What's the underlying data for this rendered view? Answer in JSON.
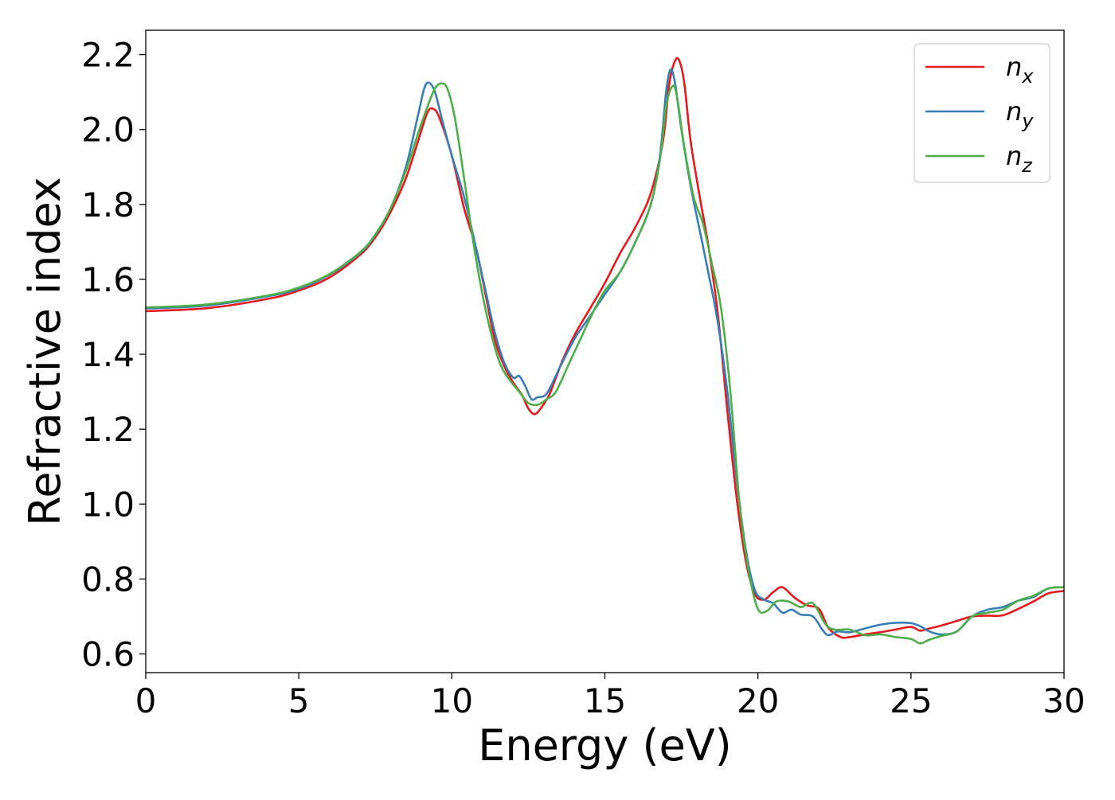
{
  "chart_data": {
    "type": "line",
    "title": "",
    "xlabel": "Energy (eV)",
    "ylabel": "Refractive index",
    "xlim": [
      0,
      30
    ],
    "ylim": [
      0.55,
      2.265
    ],
    "xticks": [
      0,
      5,
      10,
      15,
      20,
      25,
      30
    ],
    "xtick_labels": [
      "0",
      "5",
      "10",
      "15",
      "20",
      "25",
      "30"
    ],
    "yticks": [
      0.6,
      0.8,
      1.0,
      1.2,
      1.4,
      1.6,
      1.8,
      2.0,
      2.2
    ],
    "ytick_labels": [
      "0.6",
      "0.8",
      "1.0",
      "1.2",
      "1.4",
      "1.6",
      "1.8",
      "2.0",
      "2.2"
    ],
    "grid": false,
    "legend_position": "top-right",
    "series": [
      {
        "name": "n",
        "subscript": "x",
        "color": "#e41a1c",
        "points": [
          [
            0,
            1.515
          ],
          [
            2,
            1.523
          ],
          [
            4,
            1.548
          ],
          [
            5,
            1.57
          ],
          [
            6,
            1.605
          ],
          [
            7,
            1.665
          ],
          [
            7.5,
            1.712
          ],
          [
            8,
            1.78
          ],
          [
            8.5,
            1.87
          ],
          [
            8.9,
            1.97
          ],
          [
            9.2,
            2.045
          ],
          [
            9.4,
            2.055
          ],
          [
            9.6,
            2.03
          ],
          [
            10,
            1.93
          ],
          [
            10.4,
            1.79
          ],
          [
            10.8,
            1.68
          ],
          [
            11.1,
            1.56
          ],
          [
            11.4,
            1.44
          ],
          [
            11.7,
            1.37
          ],
          [
            12,
            1.325
          ],
          [
            12.3,
            1.29
          ],
          [
            12.5,
            1.255
          ],
          [
            12.7,
            1.24
          ],
          [
            12.9,
            1.255
          ],
          [
            13.2,
            1.295
          ],
          [
            13.6,
            1.38
          ],
          [
            14,
            1.45
          ],
          [
            14.5,
            1.52
          ],
          [
            15,
            1.59
          ],
          [
            15.5,
            1.67
          ],
          [
            16,
            1.74
          ],
          [
            16.5,
            1.83
          ],
          [
            16.9,
            1.97
          ],
          [
            17.1,
            2.12
          ],
          [
            17.3,
            2.185
          ],
          [
            17.45,
            2.18
          ],
          [
            17.6,
            2.12
          ],
          [
            17.8,
            1.97
          ],
          [
            18.1,
            1.82
          ],
          [
            18.4,
            1.68
          ],
          [
            18.7,
            1.5
          ],
          [
            19,
            1.25
          ],
          [
            19.3,
            1.02
          ],
          [
            19.6,
            0.85
          ],
          [
            19.9,
            0.76
          ],
          [
            20.2,
            0.745
          ],
          [
            20.5,
            0.765
          ],
          [
            20.8,
            0.778
          ],
          [
            21.2,
            0.75
          ],
          [
            21.6,
            0.73
          ],
          [
            22.0,
            0.72
          ],
          [
            22.3,
            0.67
          ],
          [
            22.7,
            0.645
          ],
          [
            23.0,
            0.645
          ],
          [
            23.5,
            0.652
          ],
          [
            24,
            0.658
          ],
          [
            24.5,
            0.665
          ],
          [
            25,
            0.672
          ],
          [
            25.3,
            0.662
          ],
          [
            25.6,
            0.668
          ],
          [
            26,
            0.676
          ],
          [
            26.5,
            0.688
          ],
          [
            27,
            0.7
          ],
          [
            27.5,
            0.702
          ],
          [
            28,
            0.703
          ],
          [
            28.5,
            0.72
          ],
          [
            29,
            0.74
          ],
          [
            29.5,
            0.762
          ],
          [
            30,
            0.768
          ]
        ]
      },
      {
        "name": "n",
        "subscript": "y",
        "color": "#377eb8",
        "points": [
          [
            0,
            1.522
          ],
          [
            2,
            1.53
          ],
          [
            4,
            1.555
          ],
          [
            5,
            1.575
          ],
          [
            6,
            1.612
          ],
          [
            7,
            1.67
          ],
          [
            7.5,
            1.718
          ],
          [
            8,
            1.79
          ],
          [
            8.5,
            1.9
          ],
          [
            8.9,
            2.04
          ],
          [
            9.1,
            2.11
          ],
          [
            9.25,
            2.125
          ],
          [
            9.45,
            2.1
          ],
          [
            9.7,
            2.02
          ],
          [
            10,
            1.93
          ],
          [
            10.4,
            1.82
          ],
          [
            10.8,
            1.68
          ],
          [
            11.1,
            1.57
          ],
          [
            11.4,
            1.46
          ],
          [
            11.7,
            1.38
          ],
          [
            12,
            1.338
          ],
          [
            12.2,
            1.342
          ],
          [
            12.4,
            1.315
          ],
          [
            12.6,
            1.28
          ],
          [
            12.8,
            1.285
          ],
          [
            13.1,
            1.295
          ],
          [
            13.5,
            1.36
          ],
          [
            14,
            1.44
          ],
          [
            14.5,
            1.5
          ],
          [
            15,
            1.56
          ],
          [
            15.5,
            1.62
          ],
          [
            16,
            1.7
          ],
          [
            16.5,
            1.8
          ],
          [
            16.8,
            1.93
          ],
          [
            17.0,
            2.1
          ],
          [
            17.15,
            2.16
          ],
          [
            17.3,
            2.12
          ],
          [
            17.5,
            2.0
          ],
          [
            17.8,
            1.85
          ],
          [
            18.1,
            1.73
          ],
          [
            18.4,
            1.61
          ],
          [
            18.7,
            1.48
          ],
          [
            19,
            1.3
          ],
          [
            19.3,
            1.07
          ],
          [
            19.6,
            0.88
          ],
          [
            19.9,
            0.77
          ],
          [
            20.2,
            0.745
          ],
          [
            20.5,
            0.735
          ],
          [
            20.8,
            0.71
          ],
          [
            21.1,
            0.718
          ],
          [
            21.4,
            0.705
          ],
          [
            21.8,
            0.7
          ],
          [
            22.1,
            0.665
          ],
          [
            22.3,
            0.65
          ],
          [
            22.6,
            0.66
          ],
          [
            23,
            0.658
          ],
          [
            23.5,
            0.668
          ],
          [
            24,
            0.678
          ],
          [
            24.5,
            0.683
          ],
          [
            25,
            0.682
          ],
          [
            25.3,
            0.674
          ],
          [
            25.6,
            0.66
          ],
          [
            26,
            0.652
          ],
          [
            26.5,
            0.66
          ],
          [
            27,
            0.7
          ],
          [
            27.5,
            0.718
          ],
          [
            28,
            0.725
          ],
          [
            28.5,
            0.742
          ],
          [
            29,
            0.752
          ],
          [
            29.5,
            0.775
          ],
          [
            30,
            0.778
          ]
        ]
      },
      {
        "name": "n",
        "subscript": "z",
        "color": "#4daf4a",
        "points": [
          [
            0,
            1.525
          ],
          [
            2,
            1.533
          ],
          [
            4,
            1.557
          ],
          [
            5,
            1.578
          ],
          [
            6,
            1.614
          ],
          [
            7,
            1.672
          ],
          [
            7.5,
            1.72
          ],
          [
            8,
            1.79
          ],
          [
            8.5,
            1.89
          ],
          [
            8.9,
            1.99
          ],
          [
            9.2,
            2.06
          ],
          [
            9.45,
            2.11
          ],
          [
            9.65,
            2.123
          ],
          [
            9.85,
            2.11
          ],
          [
            10.1,
            2.03
          ],
          [
            10.4,
            1.87
          ],
          [
            10.7,
            1.7
          ],
          [
            11.0,
            1.56
          ],
          [
            11.3,
            1.45
          ],
          [
            11.6,
            1.37
          ],
          [
            11.9,
            1.33
          ],
          [
            12.2,
            1.3
          ],
          [
            12.5,
            1.27
          ],
          [
            12.8,
            1.265
          ],
          [
            13.1,
            1.28
          ],
          [
            13.4,
            1.3
          ],
          [
            13.8,
            1.37
          ],
          [
            14.2,
            1.44
          ],
          [
            14.6,
            1.51
          ],
          [
            15,
            1.57
          ],
          [
            15.5,
            1.62
          ],
          [
            16,
            1.7
          ],
          [
            16.5,
            1.8
          ],
          [
            16.8,
            1.92
          ],
          [
            17.0,
            2.06
          ],
          [
            17.2,
            2.115
          ],
          [
            17.35,
            2.09
          ],
          [
            17.6,
            1.95
          ],
          [
            17.9,
            1.82
          ],
          [
            18.2,
            1.75
          ],
          [
            18.5,
            1.64
          ],
          [
            18.8,
            1.52
          ],
          [
            19.1,
            1.3
          ],
          [
            19.4,
            1.0
          ],
          [
            19.7,
            0.82
          ],
          [
            20.0,
            0.72
          ],
          [
            20.3,
            0.715
          ],
          [
            20.6,
            0.74
          ],
          [
            21.0,
            0.74
          ],
          [
            21.4,
            0.725
          ],
          [
            21.8,
            0.735
          ],
          [
            22.2,
            0.68
          ],
          [
            22.5,
            0.665
          ],
          [
            23,
            0.665
          ],
          [
            23.5,
            0.65
          ],
          [
            24,
            0.652
          ],
          [
            24.5,
            0.645
          ],
          [
            25,
            0.64
          ],
          [
            25.3,
            0.628
          ],
          [
            25.6,
            0.638
          ],
          [
            26,
            0.648
          ],
          [
            26.5,
            0.66
          ],
          [
            27,
            0.7
          ],
          [
            27.5,
            0.71
          ],
          [
            28,
            0.718
          ],
          [
            28.5,
            0.742
          ],
          [
            29,
            0.755
          ],
          [
            29.5,
            0.775
          ],
          [
            30,
            0.778
          ]
        ]
      }
    ]
  }
}
